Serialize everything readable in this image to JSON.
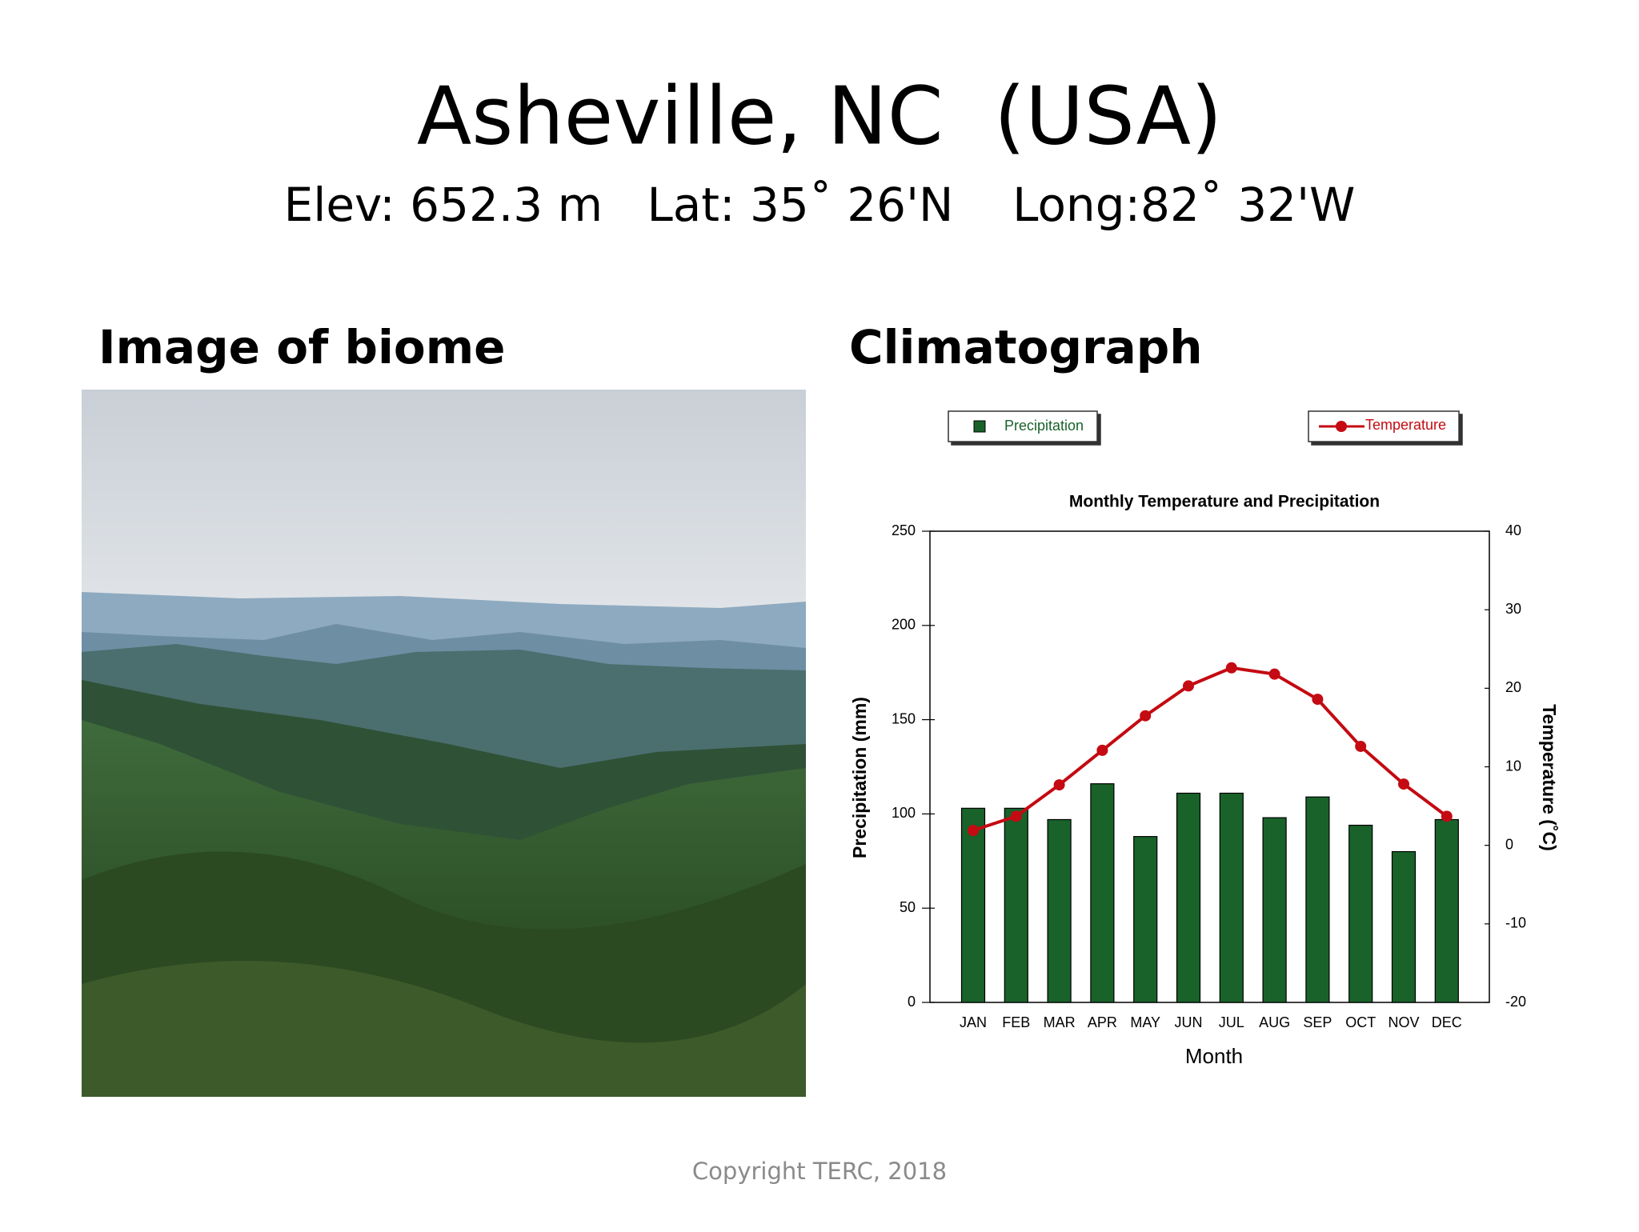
{
  "header": {
    "title": "Asheville, NC  (USA)",
    "subtitle": "Elev: 652.3 m   Lat: 35˚ 26'N    Long:82˚ 32'W"
  },
  "left_heading": "Image of biome",
  "right_heading": "Climatograph",
  "chart_data": {
    "type": "bar",
    "title": "Monthly Temperature and Precipitation",
    "x_label": "Month",
    "y_label": "Precipitation (mm)",
    "y2_label": "Temperature (˚C)",
    "categories": [
      "JAN",
      "FEB",
      "MAR",
      "APR",
      "MAY",
      "JUN",
      "JUL",
      "AUG",
      "SEP",
      "OCT",
      "NOV",
      "DEC"
    ],
    "series": [
      {
        "name": "Precipitation",
        "type": "bar",
        "color": "#19622a",
        "values": [
          103,
          103,
          97,
          116,
          88,
          111,
          111,
          98,
          109,
          94,
          80,
          97
        ]
      },
      {
        "name": "Temperature",
        "type": "line",
        "axis": "y2",
        "color": "#c40a12",
        "values": [
          1.9,
          3.7,
          7.7,
          12.1,
          16.5,
          20.3,
          22.6,
          21.8,
          18.6,
          12.6,
          7.8,
          3.7
        ]
      }
    ],
    "ylim": [
      0,
      250
    ],
    "yticks": [
      0,
      50,
      100,
      150,
      200,
      250
    ],
    "y2lim": [
      -20,
      40
    ],
    "y2ticks": [
      -20,
      -10,
      0,
      10,
      20,
      30,
      40
    ]
  },
  "footer": "Copyright TERC, 2018"
}
